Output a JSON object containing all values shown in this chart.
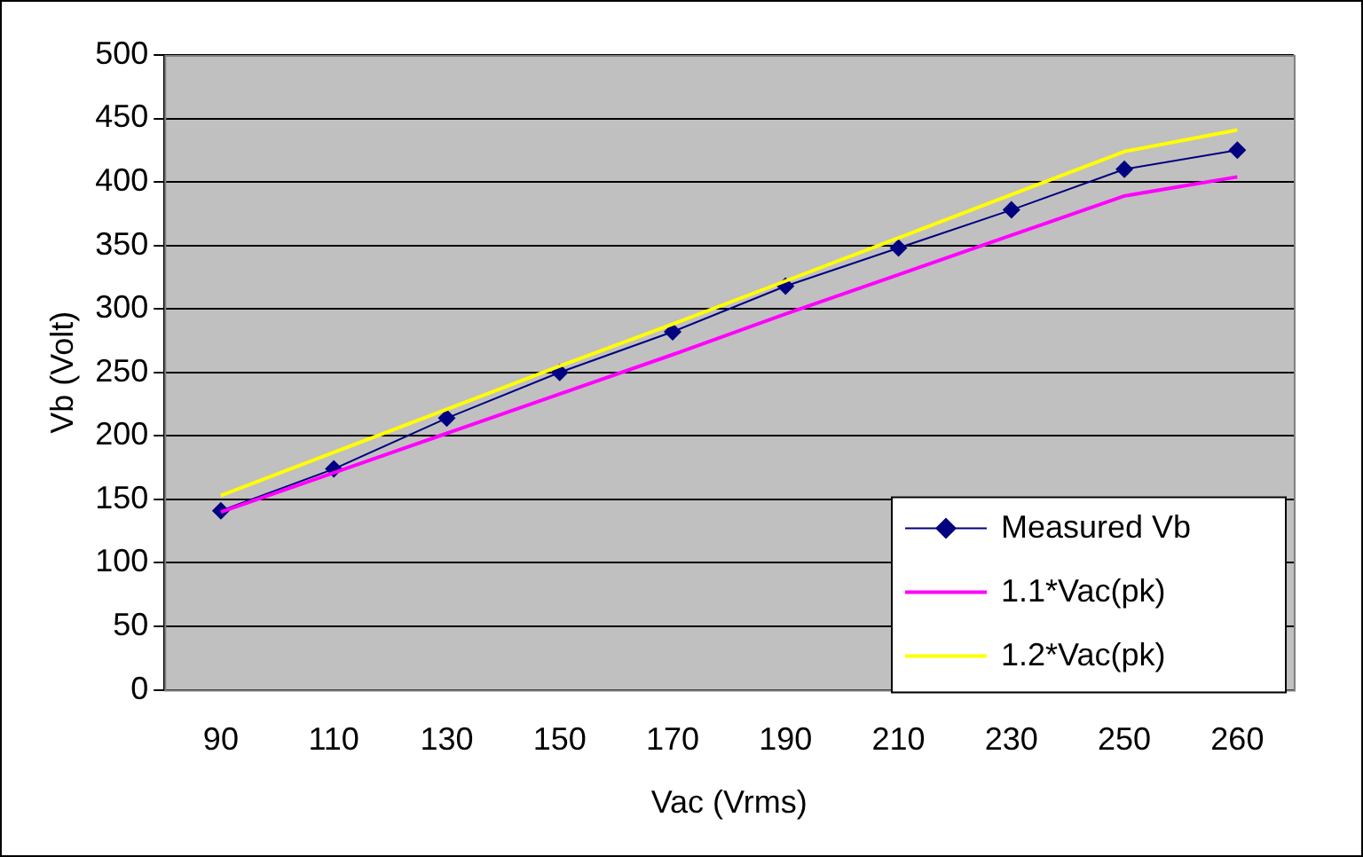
{
  "chart_data": {
    "type": "line",
    "xlabel": "Vac (Vrms)",
    "ylabel": "Vb (Volt)",
    "categories": [
      "90",
      "110",
      "130",
      "150",
      "170",
      "190",
      "210",
      "230",
      "250",
      "260"
    ],
    "series": [
      {
        "name": "Measured Vb",
        "color": "#000080",
        "marker": "diamond",
        "values": [
          141,
          174,
          214,
          250,
          282,
          318,
          348,
          378,
          410,
          425
        ]
      },
      {
        "name": "1.1*Vac(pk)",
        "color": "#ff00ff",
        "marker": "none",
        "values": [
          140,
          171,
          202,
          233,
          264,
          296,
          327,
          358,
          389,
          404
        ]
      },
      {
        "name": "1.2*Vac(pk)",
        "color": "#ffff00",
        "marker": "none",
        "values": [
          153,
          187,
          221,
          255,
          288,
          322,
          356,
          390,
          424,
          441
        ]
      }
    ],
    "ylim": [
      0,
      500
    ],
    "yticks": [
      0,
      50,
      100,
      150,
      200,
      250,
      300,
      350,
      400,
      450,
      500
    ],
    "grid": "y",
    "legend": "bottom right"
  }
}
